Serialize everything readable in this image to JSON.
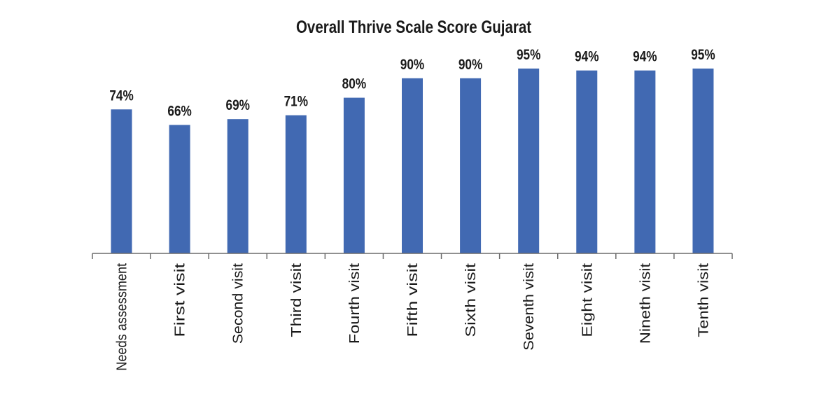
{
  "chart_data": {
    "type": "bar",
    "title": "Overall Thrive Scale Score Gujarat",
    "xlabel": "",
    "ylabel": "",
    "categories": [
      "Needs assessment",
      "First visit",
      "Second visit",
      "Third visit",
      "Fourth visit",
      "Fifth visit",
      "Sixth visit",
      "Seventh visit",
      "Eight visit",
      "Nineth visit",
      "Tenth visit"
    ],
    "values": [
      74,
      66,
      69,
      71,
      80,
      90,
      90,
      95,
      94,
      94,
      95
    ],
    "value_labels": [
      "74%",
      "66%",
      "69%",
      "71%",
      "80%",
      "90%",
      "90%",
      "95%",
      "94%",
      "94%",
      "95%"
    ],
    "ylim": [
      0,
      100
    ],
    "y_axis_visible": false,
    "grid": false,
    "legend": "none",
    "bar_color": "#4169b2"
  }
}
